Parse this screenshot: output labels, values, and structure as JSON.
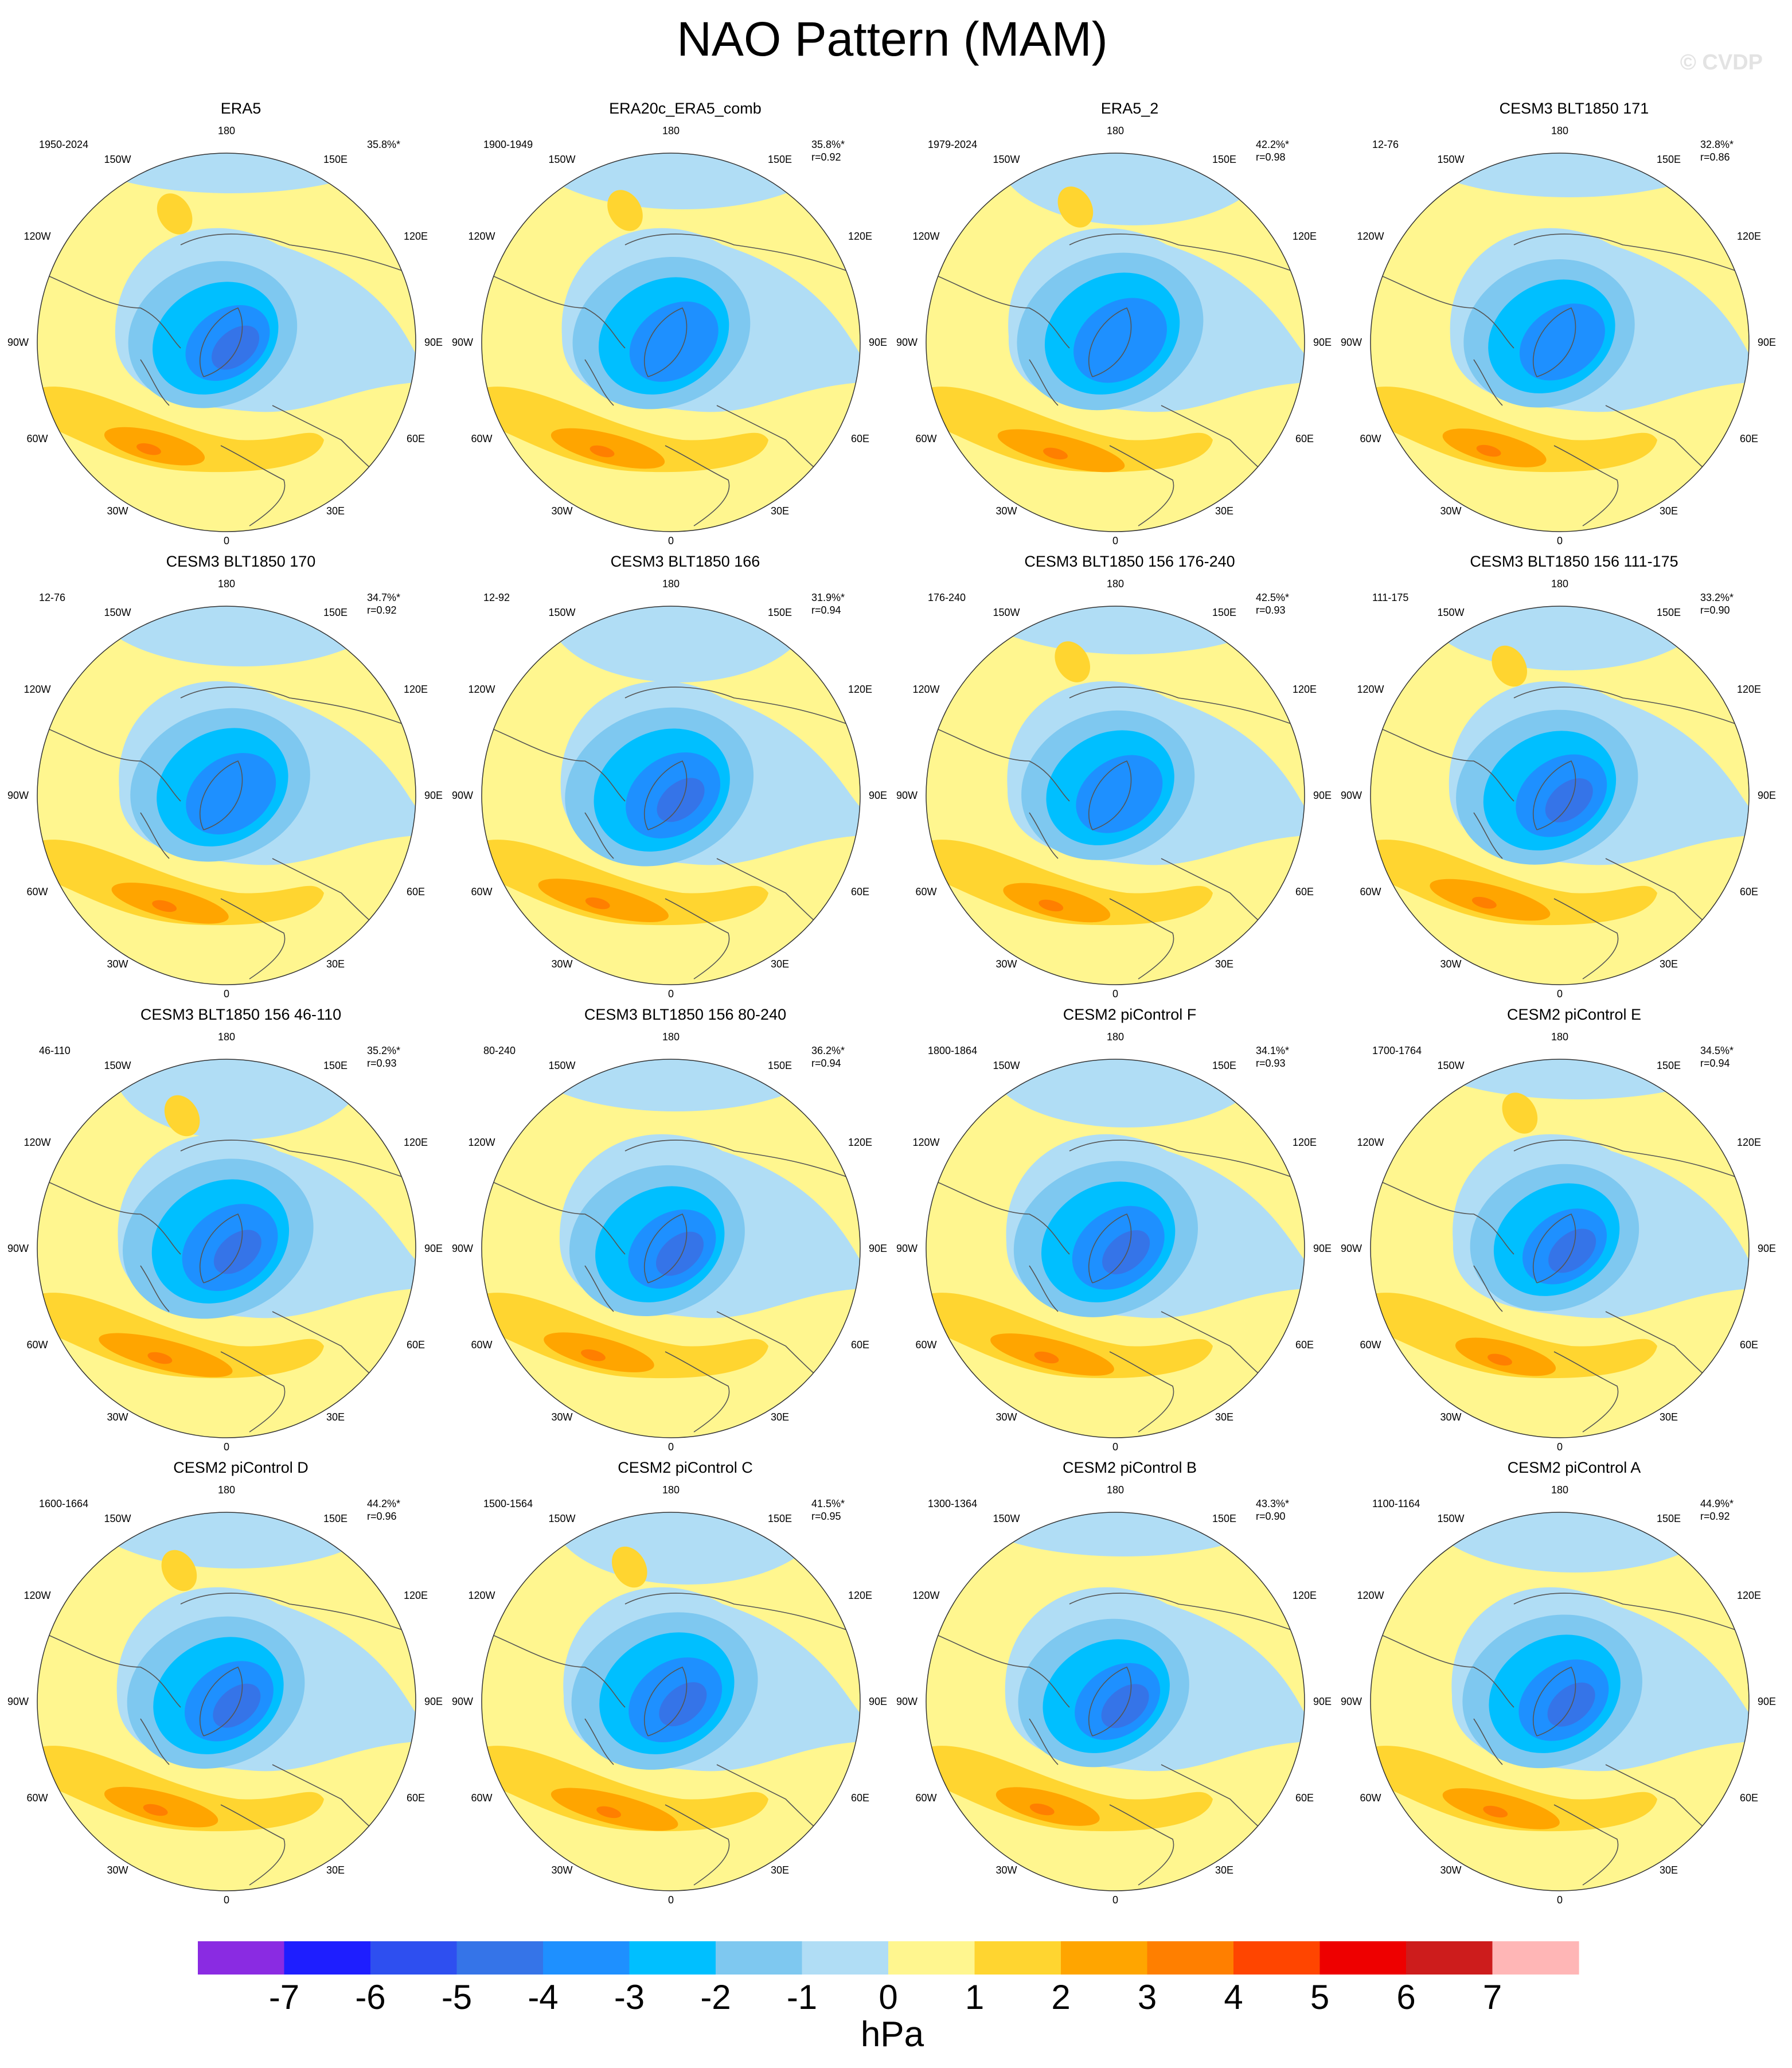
{
  "title": "NAO Pattern (MAM)",
  "watermark": "© CVDP",
  "units": "hPa",
  "colors": {
    "land_outline": "#555555",
    "circle_outline": "#333333",
    "background_ocean_yellow": "#FFF68F"
  },
  "colorbar": {
    "colors": [
      "#8A2BE2",
      "#1E1EFF",
      "#2E4FF0",
      "#3574E8",
      "#1E90FF",
      "#00BFFF",
      "#7EC8F0",
      "#B0DDF5",
      "#FFF68F",
      "#FFD530",
      "#FFA500",
      "#FF7F00",
      "#FF4500",
      "#EE0000",
      "#CD1C1C",
      "#FFB6B6"
    ],
    "ticks": [
      "-7",
      "-6",
      "-5",
      "-4",
      "-3",
      "-2",
      "-1",
      "0",
      "1",
      "2",
      "3",
      "4",
      "5",
      "6",
      "7"
    ]
  },
  "map_labels": {
    "lon_180": "180",
    "lon_150W": "150W",
    "lon_150E": "150E",
    "lon_120W": "120W",
    "lon_120E": "120E",
    "lon_90W": "90W",
    "lon_90E": "90E",
    "lon_60W": "60W",
    "lon_60E": "60E",
    "lon_30W": "30W",
    "lon_30E": "30E",
    "lon_0": "0"
  },
  "chart_data": [
    {
      "type": "heatmap",
      "title": "ERA5",
      "period": "1950-2024",
      "variance": "35.8%*",
      "pattern_corr": ""
    },
    {
      "type": "heatmap",
      "title": "ERA20c_ERA5_comb",
      "period": "1900-1949",
      "variance": "35.8%*",
      "pattern_corr": "r=0.92"
    },
    {
      "type": "heatmap",
      "title": "ERA5_2",
      "period": "1979-2024",
      "variance": "42.2%*",
      "pattern_corr": "r=0.98"
    },
    {
      "type": "heatmap",
      "title": "CESM3 BLT1850 171",
      "period": "12-76",
      "variance": "32.8%*",
      "pattern_corr": "r=0.86"
    },
    {
      "type": "heatmap",
      "title": "CESM3 BLT1850 170",
      "period": "12-76",
      "variance": "34.7%*",
      "pattern_corr": "r=0.92"
    },
    {
      "type": "heatmap",
      "title": "CESM3 BLT1850 166",
      "period": "12-92",
      "variance": "31.9%*",
      "pattern_corr": "r=0.94"
    },
    {
      "type": "heatmap",
      "title": "CESM3 BLT1850 156 176-240",
      "period": "176-240",
      "variance": "42.5%*",
      "pattern_corr": "r=0.93"
    },
    {
      "type": "heatmap",
      "title": "CESM3 BLT1850 156 111-175",
      "period": "111-175",
      "variance": "33.2%*",
      "pattern_corr": "r=0.90"
    },
    {
      "type": "heatmap",
      "title": "CESM3 BLT1850 156 46-110",
      "period": "46-110",
      "variance": "35.2%*",
      "pattern_corr": "r=0.93"
    },
    {
      "type": "heatmap",
      "title": "CESM3 BLT1850 156 80-240",
      "period": "80-240",
      "variance": "36.2%*",
      "pattern_corr": "r=0.94"
    },
    {
      "type": "heatmap",
      "title": "CESM2 piControl F",
      "period": "1800-1864",
      "variance": "34.1%*",
      "pattern_corr": "r=0.93"
    },
    {
      "type": "heatmap",
      "title": "CESM2 piControl E",
      "period": "1700-1764",
      "variance": "34.5%*",
      "pattern_corr": "r=0.94"
    },
    {
      "type": "heatmap",
      "title": "CESM2 piControl D",
      "period": "1600-1664",
      "variance": "44.2%*",
      "pattern_corr": "r=0.96"
    },
    {
      "type": "heatmap",
      "title": "CESM2 piControl C",
      "period": "1500-1564",
      "variance": "41.5%*",
      "pattern_corr": "r=0.95"
    },
    {
      "type": "heatmap",
      "title": "CESM2 piControl B",
      "period": "1300-1364",
      "variance": "43.3%*",
      "pattern_corr": "r=0.90"
    },
    {
      "type": "heatmap",
      "title": "CESM2 piControl A",
      "period": "1100-1164",
      "variance": "44.9%*",
      "pattern_corr": "r=0.92"
    }
  ]
}
